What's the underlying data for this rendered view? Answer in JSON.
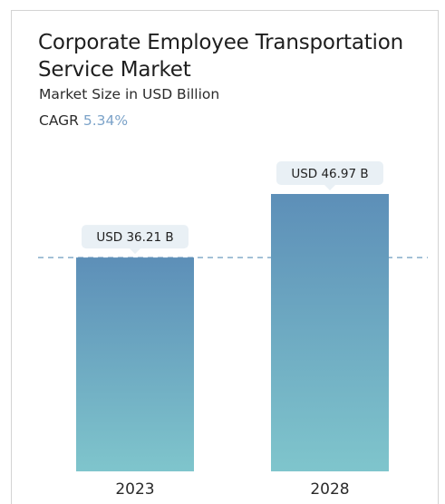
{
  "header": {
    "title": "Corporate Employee Transportation Service Market",
    "subtitle": "Market Size in USD Billion",
    "cagr_label": "CAGR",
    "cagr_value": "5.34%"
  },
  "chart_data": {
    "type": "bar",
    "categories": [
      "2023",
      "2028"
    ],
    "values": [
      36.21,
      46.97
    ],
    "data_labels": [
      "USD 36.21 B",
      "USD 46.97 B"
    ],
    "title": "Corporate Employee Transportation Service Market",
    "subtitle": "Market Size in USD Billion",
    "xlabel": "",
    "ylabel": "",
    "ylim": [
      0,
      46.97
    ],
    "grid": false,
    "reference_line": {
      "value": 36.21,
      "style": "dashed"
    },
    "colors": {
      "bar_top": "#5d8fb8",
      "bar_bottom": "#7fc5cc",
      "label_bg": "#e9f0f5",
      "reference_line": "#6f9ebf"
    }
  }
}
